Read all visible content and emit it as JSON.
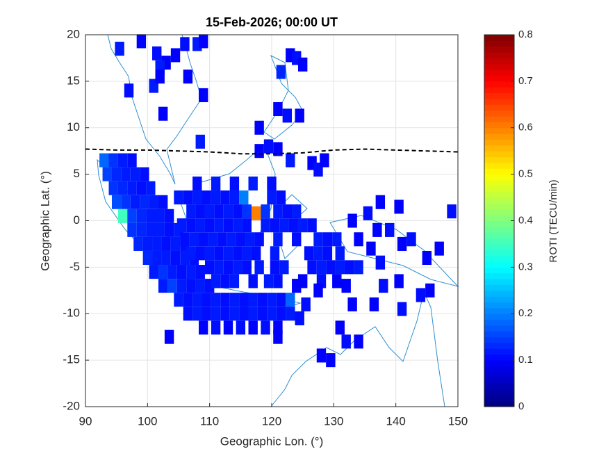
{
  "chart_data": {
    "type": "heatmap",
    "title": "15-Feb-2026; 00:00 UT",
    "x_label": "Geographic Lon. (°)",
    "y_label": "Geographic Lat. (°)",
    "colorbar_label": "ROTI (TECU/min)",
    "xlim": [
      90,
      150
    ],
    "ylim": [
      -20,
      20
    ],
    "xticks": [
      90,
      100,
      110,
      120,
      130,
      140,
      150
    ],
    "yticks": [
      -20,
      -15,
      -10,
      -5,
      0,
      5,
      10,
      15,
      20
    ],
    "clim": [
      0,
      0.8
    ],
    "cticks": [
      0,
      0.1,
      0.2,
      0.3,
      0.4,
      0.5,
      0.6,
      0.7,
      0.8
    ],
    "colormap": "jet",
    "grid": true,
    "cell_size": [
      1.5,
      1.5
    ],
    "dip_equator": {
      "lon": [
        90,
        95,
        100,
        105,
        110,
        115,
        120,
        125,
        130,
        135,
        140,
        145,
        150
      ],
      "lat": [
        7.7,
        7.6,
        7.6,
        7.5,
        7.4,
        7.2,
        7.2,
        7.3,
        7.6,
        7.7,
        7.6,
        7.5,
        7.4
      ]
    },
    "points": [
      [
        95.5,
        18.5,
        0.12
      ],
      [
        99,
        19.3,
        0.1
      ],
      [
        101.5,
        18,
        0.11
      ],
      [
        103,
        17,
        0.1
      ],
      [
        102,
        16.5,
        0.12
      ],
      [
        104.5,
        17.8,
        0.1
      ],
      [
        106,
        19,
        0.11
      ],
      [
        108,
        19,
        0.12
      ],
      [
        109,
        19.3,
        0.1
      ],
      [
        106.5,
        15.5,
        0.1
      ],
      [
        101,
        14.5,
        0.12
      ],
      [
        102,
        15.5,
        0.1
      ],
      [
        97,
        14,
        0.11
      ],
      [
        109,
        13.5,
        0.1
      ],
      [
        102.5,
        11.5,
        0.1
      ],
      [
        121.5,
        16,
        0.13
      ],
      [
        123,
        17.8,
        0.1
      ],
      [
        124,
        17.5,
        0.11
      ],
      [
        125,
        16.8,
        0.1
      ],
      [
        121,
        12,
        0.1
      ],
      [
        122.5,
        11.3,
        0.11
      ],
      [
        124.5,
        11.3,
        0.1
      ],
      [
        118,
        10,
        0.1
      ],
      [
        108.5,
        8.5,
        0.12
      ],
      [
        118,
        7.5,
        0.1
      ],
      [
        119.5,
        8,
        0.11
      ],
      [
        121,
        7.7,
        0.1
      ],
      [
        123,
        6.5,
        0.12
      ],
      [
        126.5,
        6.2,
        0.1
      ],
      [
        127.5,
        5.5,
        0.11
      ],
      [
        128.5,
        6.5,
        0.1
      ],
      [
        93,
        6.5,
        0.18
      ],
      [
        94.5,
        6.5,
        0.14
      ],
      [
        96,
        6.5,
        0.12
      ],
      [
        97.5,
        6.5,
        0.11
      ],
      [
        93.5,
        5,
        0.15
      ],
      [
        95,
        5,
        0.13
      ],
      [
        96.5,
        5,
        0.12
      ],
      [
        98,
        5,
        0.12
      ],
      [
        99.5,
        5,
        0.11
      ],
      [
        94.5,
        3.5,
        0.14
      ],
      [
        96,
        3.5,
        0.13
      ],
      [
        97.5,
        3.5,
        0.12
      ],
      [
        99,
        3.5,
        0.11
      ],
      [
        100.5,
        3.5,
        0.12
      ],
      [
        95,
        2,
        0.16
      ],
      [
        96.5,
        2,
        0.14
      ],
      [
        98,
        2,
        0.12
      ],
      [
        99.5,
        2,
        0.13
      ],
      [
        101,
        2,
        0.12
      ],
      [
        102.5,
        2,
        0.11
      ],
      [
        96,
        0.5,
        0.35
      ],
      [
        97.5,
        0.5,
        0.15
      ],
      [
        99,
        0.5,
        0.13
      ],
      [
        100.5,
        0.5,
        0.12
      ],
      [
        102,
        0.5,
        0.12
      ],
      [
        103.5,
        0.5,
        0.11
      ],
      [
        97.5,
        -1,
        0.14
      ],
      [
        99,
        -1,
        0.13
      ],
      [
        100.5,
        -1,
        0.12
      ],
      [
        102,
        -1,
        0.12
      ],
      [
        103.5,
        -1,
        0.11
      ],
      [
        105,
        -1,
        0.12
      ],
      [
        98.5,
        -2.5,
        0.13
      ],
      [
        100,
        -2.5,
        0.12
      ],
      [
        101.5,
        -2.5,
        0.12
      ],
      [
        103,
        -2.5,
        0.11
      ],
      [
        104.5,
        -2.5,
        0.12
      ],
      [
        106,
        -2.5,
        0.11
      ],
      [
        100,
        -4,
        0.13
      ],
      [
        101.5,
        -4,
        0.12
      ],
      [
        103,
        -4,
        0.12
      ],
      [
        104.5,
        -4,
        0.11
      ],
      [
        106,
        -4,
        0.12
      ],
      [
        107.5,
        -4,
        0.11
      ],
      [
        101,
        -5.5,
        0.12
      ],
      [
        102.5,
        -5.5,
        0.14
      ],
      [
        104,
        -5.5,
        0.12
      ],
      [
        105.5,
        -5.5,
        0.11
      ],
      [
        107,
        -5.5,
        0.12
      ],
      [
        108.5,
        -5.5,
        0.11
      ],
      [
        102.5,
        -7,
        0.12
      ],
      [
        104,
        -7,
        0.15
      ],
      [
        105.5,
        -7,
        0.12
      ],
      [
        107,
        -7,
        0.11
      ],
      [
        108.5,
        -7,
        0.12
      ],
      [
        110,
        -7,
        0.11
      ],
      [
        105,
        -8.5,
        0.12
      ],
      [
        106.5,
        -8.5,
        0.11
      ],
      [
        108,
        -8.5,
        0.12
      ],
      [
        109.5,
        -8.5,
        0.11
      ],
      [
        111,
        -8.5,
        0.12
      ],
      [
        112.5,
        -8.5,
        0.11
      ],
      [
        114,
        -8.5,
        0.12
      ],
      [
        115.5,
        -8.5,
        0.11
      ],
      [
        117,
        -8.5,
        0.12
      ],
      [
        118.5,
        -8.5,
        0.11
      ],
      [
        120,
        -8.5,
        0.12
      ],
      [
        121.5,
        -8.5,
        0.11
      ],
      [
        123,
        -8.5,
        0.18
      ],
      [
        106.5,
        -10,
        0.11
      ],
      [
        108,
        -10,
        0.12
      ],
      [
        109.5,
        -10,
        0.11
      ],
      [
        111,
        -10,
        0.12
      ],
      [
        112.5,
        -10,
        0.11
      ],
      [
        114,
        -10,
        0.12
      ],
      [
        115.5,
        -10,
        0.11
      ],
      [
        117,
        -10,
        0.12
      ],
      [
        118.5,
        -10,
        0.11
      ],
      [
        120,
        -10,
        0.12
      ],
      [
        121.5,
        -10,
        0.11
      ],
      [
        123,
        -10,
        0.12
      ],
      [
        109,
        -11.5,
        0.1
      ],
      [
        111,
        -11.5,
        0.11
      ],
      [
        113,
        -11.5,
        0.1
      ],
      [
        115,
        -11.5,
        0.11
      ],
      [
        117,
        -11.5,
        0.1
      ],
      [
        119,
        -11.5,
        0.11
      ],
      [
        121,
        -11.5,
        0.1
      ],
      [
        103.5,
        -12.5,
        0.1
      ],
      [
        121,
        -12.5,
        0.1
      ],
      [
        108,
        4,
        0.11
      ],
      [
        111,
        4,
        0.12
      ],
      [
        114,
        4,
        0.11
      ],
      [
        117,
        4,
        0.12
      ],
      [
        120,
        4,
        0.11
      ],
      [
        105,
        2.5,
        0.12
      ],
      [
        106.5,
        2.5,
        0.11
      ],
      [
        108,
        2.5,
        0.12
      ],
      [
        109.5,
        2.5,
        0.11
      ],
      [
        111,
        2.5,
        0.12
      ],
      [
        112.5,
        2.5,
        0.11
      ],
      [
        114,
        2.5,
        0.12
      ],
      [
        115.5,
        2.5,
        0.2
      ],
      [
        120,
        2.5,
        0.12
      ],
      [
        121.5,
        2.5,
        0.11
      ],
      [
        107,
        1,
        0.12
      ],
      [
        108.5,
        1,
        0.11
      ],
      [
        110,
        1,
        0.12
      ],
      [
        111.5,
        1,
        0.11
      ],
      [
        113,
        1,
        0.12
      ],
      [
        114.5,
        1,
        0.11
      ],
      [
        116,
        1,
        0.14
      ],
      [
        117.5,
        0.8,
        0.6
      ],
      [
        119,
        1,
        0.14
      ],
      [
        121,
        1,
        0.12
      ],
      [
        122.5,
        1,
        0.11
      ],
      [
        124,
        1,
        0.12
      ],
      [
        105.5,
        -0.5,
        0.12
      ],
      [
        107,
        -0.5,
        0.11
      ],
      [
        108.5,
        -0.5,
        0.12
      ],
      [
        110,
        -0.5,
        0.11
      ],
      [
        111.5,
        -0.5,
        0.12
      ],
      [
        113,
        -0.5,
        0.11
      ],
      [
        114.5,
        -0.5,
        0.12
      ],
      [
        116,
        -0.5,
        0.11
      ],
      [
        119,
        -0.5,
        0.12
      ],
      [
        120.5,
        -0.5,
        0.11
      ],
      [
        122,
        -0.5,
        0.12
      ],
      [
        123.5,
        -0.5,
        0.11
      ],
      [
        125,
        -0.5,
        0.12
      ],
      [
        126.5,
        -0.5,
        0.11
      ],
      [
        106,
        -2,
        0.11
      ],
      [
        107.5,
        -2,
        0.12
      ],
      [
        109,
        -2,
        0.11
      ],
      [
        110.5,
        -2,
        0.12
      ],
      [
        112,
        -2,
        0.11
      ],
      [
        113.5,
        -2,
        0.12
      ],
      [
        115,
        -2,
        0.11
      ],
      [
        116.5,
        -2,
        0.12
      ],
      [
        118,
        -2,
        0.11
      ],
      [
        121,
        -2,
        0.12
      ],
      [
        124,
        -2,
        0.11
      ],
      [
        127.5,
        -2,
        0.12
      ],
      [
        129,
        -2,
        0.11
      ],
      [
        130.5,
        -2,
        0.12
      ],
      [
        107,
        -3.5,
        0.12
      ],
      [
        108.5,
        -3.5,
        0.11
      ],
      [
        110,
        -3.5,
        0.12
      ],
      [
        111.5,
        -3.5,
        0.11
      ],
      [
        113,
        -3.5,
        0.12
      ],
      [
        114.5,
        -3.5,
        0.11
      ],
      [
        116,
        -3.5,
        0.12
      ],
      [
        117.5,
        -3.5,
        0.11
      ],
      [
        120.5,
        -3.5,
        0.12
      ],
      [
        126,
        -3.5,
        0.11
      ],
      [
        127.5,
        -3.5,
        0.12
      ],
      [
        129,
        -3.5,
        0.11
      ],
      [
        131,
        -3.5,
        0.12
      ],
      [
        110,
        -5,
        0.11
      ],
      [
        111.5,
        -5,
        0.12
      ],
      [
        113,
        -5,
        0.11
      ],
      [
        114.5,
        -5,
        0.12
      ],
      [
        116,
        -5,
        0.11
      ],
      [
        118,
        -5,
        0.12
      ],
      [
        120.5,
        -5,
        0.11
      ],
      [
        122,
        -5,
        0.12
      ],
      [
        126.5,
        -5,
        0.11
      ],
      [
        128,
        -5,
        0.12
      ],
      [
        129.5,
        -5,
        0.11
      ],
      [
        131,
        -5,
        0.12
      ],
      [
        132.5,
        -5,
        0.11
      ],
      [
        134,
        -5,
        0.12
      ],
      [
        111,
        -6.5,
        0.12
      ],
      [
        112.5,
        -6.5,
        0.11
      ],
      [
        114,
        -6.5,
        0.12
      ],
      [
        117,
        -6.5,
        0.11
      ],
      [
        119.5,
        -6.5,
        0.12
      ],
      [
        121,
        -6.5,
        0.11
      ],
      [
        125,
        -6.5,
        0.1
      ],
      [
        128,
        -6.5,
        0.11
      ],
      [
        130.5,
        -6.5,
        0.1
      ],
      [
        133,
        0,
        0.1
      ],
      [
        135.5,
        0.8,
        0.11
      ],
      [
        137.5,
        2,
        0.1
      ],
      [
        140.5,
        1.5,
        0.1
      ],
      [
        149,
        1,
        0.11
      ],
      [
        137,
        -1,
        0.1
      ],
      [
        139,
        -1,
        0.11
      ],
      [
        134,
        -2,
        0.1
      ],
      [
        141,
        -2.5,
        0.1
      ],
      [
        142.5,
        -2,
        0.11
      ],
      [
        136,
        -3,
        0.1
      ],
      [
        137.5,
        -4.5,
        0.11
      ],
      [
        145,
        -4,
        0.1
      ],
      [
        147,
        -3,
        0.1
      ],
      [
        138,
        -7,
        0.11
      ],
      [
        140.5,
        -6.5,
        0.1
      ],
      [
        145.5,
        -7.5,
        0.1
      ],
      [
        144,
        -8,
        0.11
      ],
      [
        133,
        -9,
        0.1
      ],
      [
        136.5,
        -9,
        0.1
      ],
      [
        141,
        -9.5,
        0.11
      ],
      [
        131,
        -11.5,
        0.1
      ],
      [
        134,
        -13,
        0.1
      ],
      [
        132,
        -13,
        0.11
      ],
      [
        128,
        -14.5,
        0.1
      ],
      [
        129.5,
        -15,
        0.1
      ],
      [
        125.5,
        -9,
        0.11
      ],
      [
        124,
        -7,
        0.1
      ],
      [
        127.5,
        -7.5,
        0.1
      ],
      [
        124.5,
        -10.5,
        0.11
      ],
      [
        132,
        -7,
        0.1
      ]
    ]
  }
}
